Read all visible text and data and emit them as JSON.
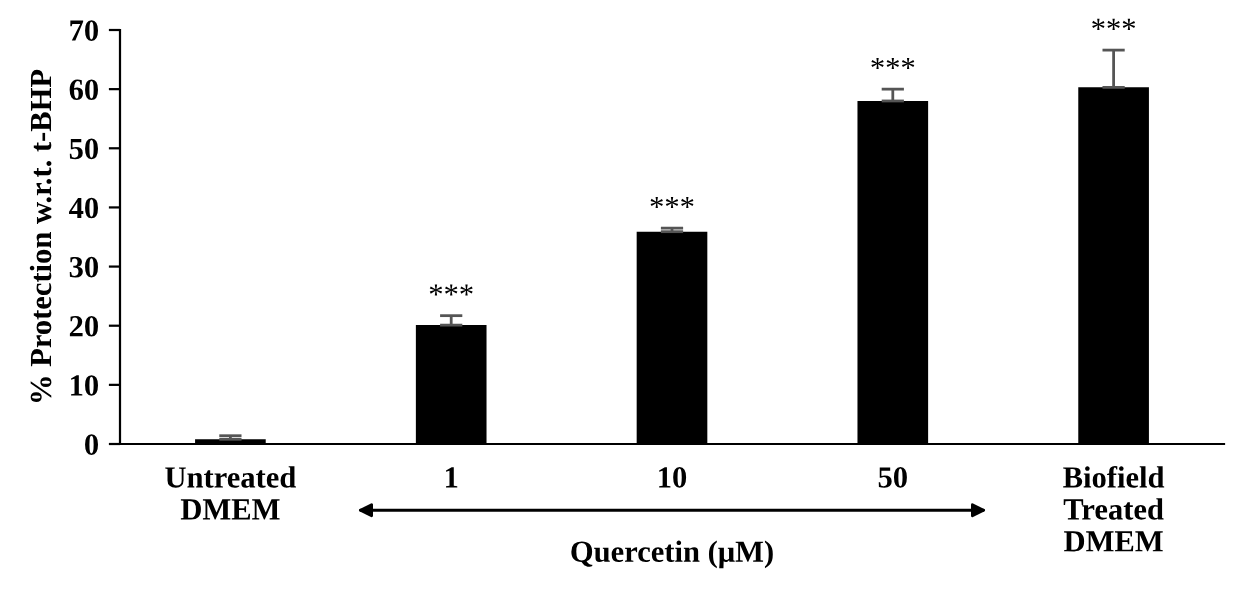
{
  "chart_data": {
    "type": "bar",
    "ylabel": "% Protection w.r.t. t-BHP",
    "xlabel": "Quercetin (μM)",
    "categories": [
      "Untreated\nDMEM",
      "1",
      "10",
      "50",
      "Biofield\nTreated\nDMEM"
    ],
    "values": [
      0.8,
      20.1,
      35.9,
      58.0,
      60.3
    ],
    "errors": [
      [
        0.8,
        1.4
      ],
      [
        20.1,
        21.7
      ],
      [
        35.9,
        36.5
      ],
      [
        58.0,
        60.0
      ],
      [
        60.3,
        66.6
      ]
    ],
    "color": "#000000",
    "ylim": [
      0,
      70
    ],
    "yticks": [
      0,
      10,
      20,
      30,
      40,
      50,
      60,
      70
    ],
    "grid": false,
    "legend": false,
    "annotations": [
      "***",
      "***",
      "***",
      "***"
    ]
  }
}
